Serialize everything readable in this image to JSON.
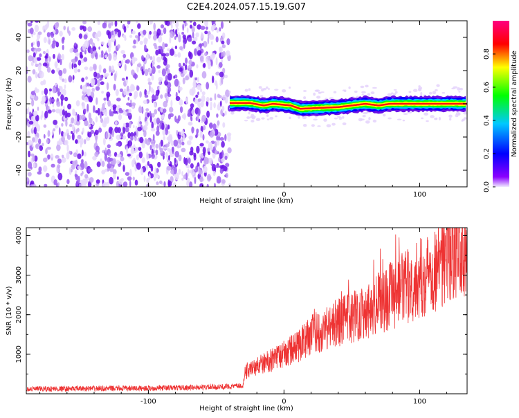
{
  "title": "C2E4.2024.057.15.19.G07",
  "chart_data": [
    {
      "type": "heatmap",
      "xlabel": "Height of straight line (km)",
      "ylabel": "Frequency (Hz)",
      "xlim": [
        -190,
        135
      ],
      "ylim": [
        -50,
        50
      ],
      "x_ticks": [
        -100,
        0,
        100
      ],
      "y_ticks": [
        -40,
        -20,
        0,
        20,
        40
      ],
      "grid": false,
      "noise_region_x": [
        -190,
        -40
      ],
      "signal_region_x": [
        -40,
        135
      ],
      "signal_frequency_track": [
        {
          "x": -40,
          "y": 0.5
        },
        {
          "x": -25,
          "y": 0.5
        },
        {
          "x": -15,
          "y": -1
        },
        {
          "x": -8,
          "y": 0
        },
        {
          "x": 5,
          "y": -1
        },
        {
          "x": 12,
          "y": -3
        },
        {
          "x": 25,
          "y": -2.5
        },
        {
          "x": 40,
          "y": -2
        },
        {
          "x": 50,
          "y": -1
        },
        {
          "x": 60,
          "y": 0
        },
        {
          "x": 70,
          "y": -1
        },
        {
          "x": 78,
          "y": 0
        },
        {
          "x": 100,
          "y": 0
        },
        {
          "x": 135,
          "y": 0
        }
      ],
      "colorbar": {
        "label": "Normalized spectral amplitude",
        "range": [
          0,
          1
        ],
        "ticks": [
          "0.0",
          "0.2",
          "0.4",
          "0.6",
          "0.8"
        ]
      },
      "colors": {
        "noise": "#7b16e8",
        "spectrum_stops": [
          "#f0e8ff",
          "#8b00ff",
          "#0000ff",
          "#00c8ff",
          "#00ff00",
          "#ffff00",
          "#ff0000",
          "#ff0080"
        ]
      }
    },
    {
      "type": "line",
      "xlabel": "Height of straight line (km)",
      "ylabel": "SNR (10 * v/v)",
      "xlim": [
        -190,
        135
      ],
      "ylim": [
        0,
        4200
      ],
      "x_ticks": [
        -100,
        0,
        100
      ],
      "y_ticks": [
        1000,
        2000,
        3000,
        4000
      ],
      "grid": false,
      "series": [
        {
          "color": "#ee3333",
          "envelope": [
            {
              "x": -190,
              "y": 120
            },
            {
              "x": -100,
              "y": 140
            },
            {
              "x": -50,
              "y": 170
            },
            {
              "x": -30,
              "y": 200
            },
            {
              "x": -29,
              "y": 550
            },
            {
              "x": -10,
              "y": 850
            },
            {
              "x": 0,
              "y": 1000
            },
            {
              "x": 10,
              "y": 1200
            },
            {
              "x": 20,
              "y": 1500
            },
            {
              "x": 40,
              "y": 1800
            },
            {
              "x": 60,
              "y": 2100
            },
            {
              "x": 80,
              "y": 2500
            },
            {
              "x": 100,
              "y": 2900
            },
            {
              "x": 120,
              "y": 3400
            },
            {
              "x": 135,
              "y": 3800
            }
          ]
        }
      ]
    }
  ]
}
